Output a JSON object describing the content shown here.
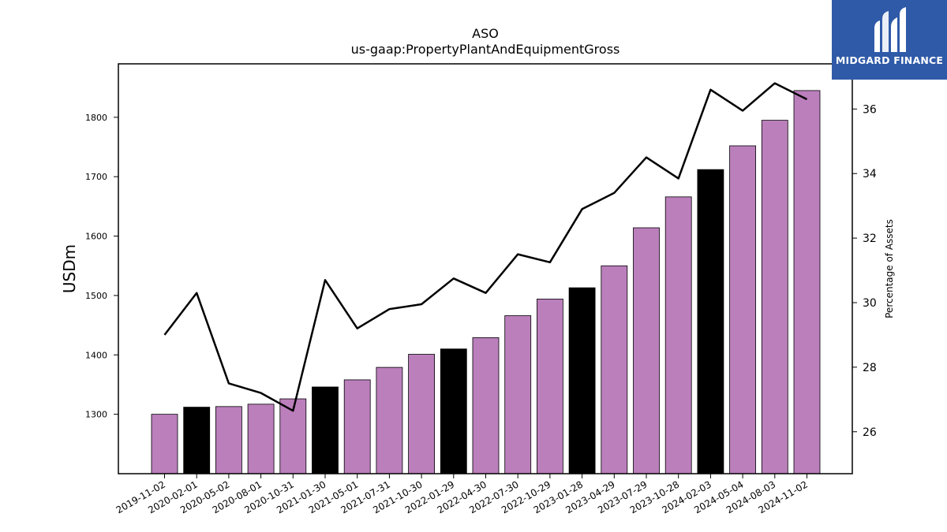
{
  "chart_data": {
    "type": "bar",
    "title": "ASO",
    "subtitle": "us-gaap:PropertyPlantAndEquipmentGross",
    "ylabel": "USDm",
    "y2label": "Percentage of Assets",
    "categories": [
      "2019-11-02",
      "2020-02-01",
      "2020-05-02",
      "2020-08-01",
      "2020-10-31",
      "2021-01-30",
      "2021-05-01",
      "2021-07-31",
      "2021-10-30",
      "2022-01-29",
      "2022-04-30",
      "2022-07-30",
      "2022-10-29",
      "2023-01-28",
      "2023-04-29",
      "2023-07-29",
      "2023-10-28",
      "2024-02-03",
      "2024-05-04",
      "2024-08-03",
      "2024-11-02"
    ],
    "series": [
      {
        "type": "bar",
        "values": [
          1300,
          1312,
          1313,
          1317,
          1326,
          1346,
          1358,
          1379,
          1401,
          1410,
          1429,
          1466,
          1494,
          1513,
          1550,
          1614,
          1666,
          1712,
          1752,
          1795,
          1845
        ],
        "highlight": [
          false,
          true,
          false,
          false,
          false,
          true,
          false,
          false,
          false,
          true,
          false,
          false,
          false,
          true,
          false,
          false,
          false,
          true,
          false,
          false,
          false
        ]
      },
      {
        "type": "line",
        "axis": "right",
        "values": [
          29.0,
          30.3,
          27.5,
          27.2,
          26.65,
          30.7,
          29.2,
          29.8,
          29.95,
          30.75,
          30.3,
          31.5,
          31.25,
          32.9,
          33.4,
          34.5,
          33.85,
          36.6,
          35.95,
          36.8,
          36.3
        ]
      }
    ],
    "ylim": [
      1200,
      1890
    ],
    "y2lim": [
      24.7,
      37.4
    ],
    "yticks": [
      1300,
      1400,
      1500,
      1600,
      1700,
      1800
    ],
    "y2ticks": [
      26,
      28,
      30,
      32,
      34,
      36
    ],
    "colors": {
      "bar": "#bb7fbc",
      "bar_highlight": "#000000",
      "line": "#000000"
    },
    "grid": false
  },
  "logo": {
    "text": "MIDGARD FINANCE",
    "color": "#2f5aa8"
  }
}
